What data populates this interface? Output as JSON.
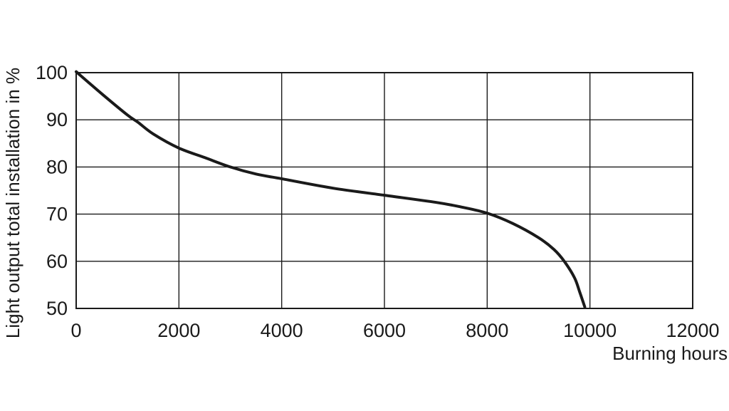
{
  "chart_data": {
    "type": "line",
    "title": "",
    "xlabel": "Burning hours",
    "ylabel": "Light output total installation in %",
    "xlim": [
      0,
      12000
    ],
    "ylim": [
      50,
      100
    ],
    "grid": true,
    "legend": "none",
    "x_gridlines": [
      2000,
      4000,
      6000,
      8000,
      10000
    ],
    "y_gridlines": [
      60,
      70,
      80,
      90
    ],
    "x_ticks": [
      {
        "value": 0,
        "label": "0"
      },
      {
        "value": 2000,
        "label": "2000"
      },
      {
        "value": 4000,
        "label": "4000"
      },
      {
        "value": 6000,
        "label": "6000"
      },
      {
        "value": 8000,
        "label": "8000"
      },
      {
        "value": 10000,
        "label": "10000"
      },
      {
        "value": 12000,
        "label": "12000"
      }
    ],
    "y_ticks": [
      {
        "value": 50,
        "label": "50"
      },
      {
        "value": 60,
        "label": "60"
      },
      {
        "value": 70,
        "label": "70"
      },
      {
        "value": 80,
        "label": "80"
      },
      {
        "value": 90,
        "label": "90"
      },
      {
        "value": 100,
        "label": "100"
      }
    ],
    "series": [
      {
        "color": "#1a1a1a",
        "x": [
          0,
          500,
          1000,
          1200,
          1500,
          2000,
          2500,
          3000,
          3500,
          4000,
          5000,
          6000,
          7000,
          7500,
          8000,
          8500,
          9000,
          9300,
          9500,
          9700,
          9800,
          9900
        ],
        "y": [
          100.2,
          95.5,
          91,
          89.5,
          87,
          84,
          82,
          80,
          78.5,
          77.5,
          75.5,
          74,
          72.5,
          71.5,
          70.2,
          68,
          65,
          62.5,
          60,
          56.5,
          53.5,
          50.3
        ]
      }
    ]
  }
}
